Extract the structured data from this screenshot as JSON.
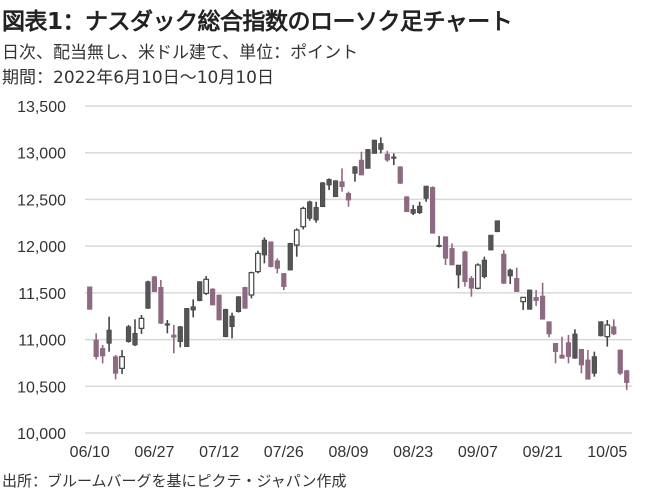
{
  "header": {
    "title": "図表1：ナスダック総合指数のローソク足チャート",
    "subtitle": "日次、配当無し、米ドル建て、単位：ポイント",
    "period": "期間：2022年6月10日～10月10日"
  },
  "footer": {
    "source": "出所：ブルームバーグを基にピクテ・ジャパン作成"
  },
  "colors": {
    "up_filled": "#555555",
    "down": "#8e6a82",
    "hollow": "#ffffff",
    "grid": "#d9d9d9"
  },
  "chart_data": {
    "type": "candlestick",
    "title": "ナスダック総合指数のローソク足チャート",
    "ylim": [
      10000,
      13500
    ],
    "y_ticks": [
      "10,000",
      "10,500",
      "11,000",
      "11,500",
      "12,000",
      "12,500",
      "13,000",
      "13,500"
    ],
    "y_tick_values": [
      10000,
      10500,
      11000,
      11500,
      12000,
      12500,
      13000,
      13500
    ],
    "x_ticks": [
      "06/10",
      "06/27",
      "07/12",
      "07/26",
      "08/09",
      "08/23",
      "09/07",
      "09/21",
      "10/05"
    ],
    "grid": "horizontal",
    "fields": [
      "open",
      "high",
      "low",
      "close",
      "style"
    ],
    "candles": [
      [
        11565,
        11565,
        11323,
        11323,
        "m"
      ],
      [
        10995,
        11067,
        10788,
        10817,
        "m"
      ],
      [
        10906,
        10942,
        10745,
        10824,
        "m"
      ],
      [
        10960,
        11245,
        10870,
        11102,
        "g"
      ],
      [
        10817,
        10835,
        10574,
        10638,
        "m"
      ],
      [
        10692,
        10888,
        10631,
        10817,
        "w"
      ],
      [
        10978,
        11156,
        10967,
        11138,
        "g"
      ],
      [
        10942,
        11217,
        10931,
        11067,
        "g"
      ],
      [
        11120,
        11263,
        11060,
        11227,
        "w"
      ],
      [
        11334,
        11630,
        11330,
        11620,
        "g"
      ],
      [
        11673,
        11680,
        11510,
        11513,
        "m"
      ],
      [
        11559,
        11638,
        11167,
        11174,
        "m"
      ],
      [
        11160,
        11210,
        11067,
        11170,
        "g"
      ],
      [
        11049,
        11156,
        10853,
        11024,
        "m"
      ],
      [
        10978,
        11145,
        10917,
        11138,
        "g"
      ],
      [
        10924,
        11334,
        10924,
        11334,
        "g"
      ],
      [
        11316,
        11430,
        11238,
        11352,
        "g"
      ],
      [
        11416,
        11625,
        11410,
        11620,
        "g"
      ],
      [
        11495,
        11680,
        11477,
        11645,
        "w"
      ],
      [
        11541,
        11550,
        11365,
        11370,
        "m"
      ],
      [
        11477,
        11480,
        11205,
        11210,
        "m"
      ],
      [
        11031,
        11330,
        11025,
        11323,
        "g"
      ],
      [
        11138,
        11288,
        11013,
        11252,
        "g"
      ],
      [
        11298,
        11465,
        11290,
        11459,
        "g"
      ],
      [
        11559,
        11565,
        11330,
        11334,
        "m"
      ],
      [
        11477,
        11727,
        11441,
        11716,
        "w"
      ],
      [
        11727,
        11951,
        11709,
        11922,
        "w"
      ],
      [
        11905,
        12093,
        11816,
        12065,
        "g"
      ],
      [
        12047,
        12050,
        11773,
        11780,
        "m"
      ],
      [
        11844,
        11869,
        11708,
        11762,
        "m"
      ],
      [
        11708,
        11710,
        11530,
        11566,
        "m"
      ],
      [
        11744,
        12035,
        11740,
        12030,
        "g"
      ],
      [
        12012,
        12190,
        11887,
        12172,
        "w"
      ],
      [
        12208,
        12422,
        12179,
        12404,
        "w"
      ],
      [
        12297,
        12486,
        12272,
        12475,
        "g"
      ],
      [
        12279,
        12475,
        12251,
        12415,
        "g"
      ],
      [
        12422,
        12685,
        12420,
        12679,
        "g"
      ],
      [
        12654,
        12725,
        12600,
        12714,
        "g"
      ],
      [
        12529,
        12705,
        12525,
        12700,
        "g"
      ],
      [
        12690,
        12832,
        12583,
        12636,
        "m"
      ],
      [
        12565,
        12583,
        12422,
        12493,
        "m"
      ],
      [
        12779,
        12857,
        12690,
        12850,
        "g"
      ],
      [
        12921,
        13010,
        12761,
        12761,
        "m"
      ],
      [
        12832,
        13040,
        12830,
        13035,
        "g"
      ],
      [
        12992,
        13140,
        12990,
        13135,
        "g"
      ],
      [
        13035,
        13164,
        12992,
        13099,
        "g"
      ],
      [
        12985,
        13021,
        12903,
        12921,
        "m"
      ],
      [
        12945,
        12992,
        12868,
        12955,
        "g"
      ],
      [
        12850,
        12855,
        12665,
        12672,
        "m"
      ],
      [
        12529,
        12535,
        12365,
        12368,
        "m"
      ],
      [
        12351,
        12440,
        12333,
        12393,
        "g"
      ],
      [
        12358,
        12475,
        12344,
        12429,
        "g"
      ],
      [
        12511,
        12643,
        12475,
        12643,
        "g"
      ],
      [
        12629,
        12640,
        12137,
        12137,
        "m"
      ],
      [
        11994,
        12108,
        11987,
        12010,
        "g"
      ],
      [
        12101,
        12105,
        11798,
        11869,
        "m"
      ],
      [
        11976,
        12029,
        11798,
        11798,
        "m"
      ],
      [
        11691,
        11798,
        11549,
        11798,
        "g"
      ],
      [
        11940,
        11951,
        11566,
        11619,
        "m"
      ],
      [
        11655,
        11680,
        11459,
        11549,
        "m"
      ],
      [
        11549,
        11816,
        11538,
        11798,
        "w"
      ],
      [
        11673,
        11887,
        11655,
        11851,
        "g"
      ],
      [
        11958,
        12120,
        11955,
        12118,
        "g"
      ],
      [
        12154,
        12275,
        12150,
        12272,
        "g"
      ],
      [
        11915,
        11958,
        11595,
        11602,
        "m"
      ],
      [
        11680,
        11759,
        11595,
        11745,
        "g"
      ],
      [
        11655,
        11770,
        11513,
        11513,
        "m"
      ],
      [
        11406,
        11452,
        11317,
        11452,
        "w"
      ],
      [
        11324,
        11535,
        11320,
        11531,
        "g"
      ],
      [
        11452,
        11531,
        11360,
        11417,
        "m"
      ],
      [
        11466,
        11609,
        11217,
        11217,
        "m"
      ],
      [
        11192,
        11192,
        11025,
        11060,
        "m"
      ],
      [
        10960,
        10960,
        10746,
        10871,
        "m"
      ],
      [
        10835,
        11031,
        10795,
        10800,
        "m"
      ],
      [
        10968,
        11049,
        10746,
        10818,
        "m"
      ],
      [
        10800,
        11110,
        10795,
        11060,
        "g"
      ],
      [
        10896,
        10900,
        10639,
        10728,
        "m"
      ],
      [
        10782,
        10889,
        10575,
        10575,
        "m"
      ],
      [
        10639,
        10871,
        10603,
        10818,
        "g"
      ],
      [
        11039,
        11195,
        11035,
        11192,
        "g"
      ],
      [
        11031,
        11210,
        10925,
        11156,
        "w"
      ],
      [
        11138,
        11217,
        11049,
        11060,
        "m"
      ],
      [
        10889,
        10895,
        10621,
        10639,
        "m"
      ],
      [
        10668,
        10675,
        10461,
        10539,
        "m"
      ]
    ]
  }
}
